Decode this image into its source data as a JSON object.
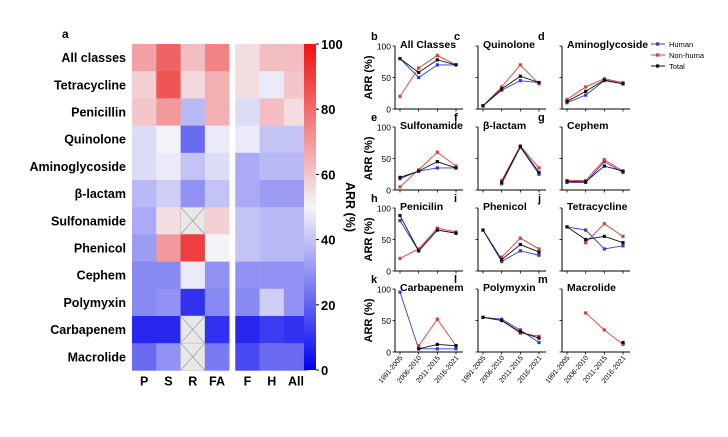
{
  "panel_letters": {
    "a": "a",
    "b": "b",
    "c": "c",
    "d": "d",
    "e": "e",
    "f": "f",
    "g": "g",
    "h": "h",
    "i": "i",
    "j": "j",
    "k": "k",
    "l": "l",
    "m": "m"
  },
  "legend": [
    {
      "label": "Human",
      "color": "#2a3bd6"
    },
    {
      "label": "Non-huma",
      "color": "#e63a2e"
    },
    {
      "label": "Total",
      "color": "#111111"
    }
  ],
  "chart_data": [
    {
      "type": "heatmap",
      "rows": [
        "All classes",
        "Tetracycline",
        "Penicillin",
        "Quinolone",
        "Aminoglycoside",
        "β-lactam",
        "Sulfonamide",
        "Phenicol",
        "Cephem",
        "Polymyxin",
        "Carbapenem",
        "Macrolide"
      ],
      "columns": [
        "P",
        "S",
        "R",
        "FA",
        "F",
        "H",
        "All"
      ],
      "values": [
        [
          68,
          82,
          62,
          75,
          55,
          62,
          62
        ],
        [
          58,
          85,
          56,
          65,
          55,
          48,
          60
        ],
        [
          60,
          70,
          38,
          65,
          45,
          62,
          55
        ],
        [
          45,
          50,
          22,
          48,
          48,
          40,
          40
        ],
        [
          45,
          48,
          40,
          45,
          35,
          38,
          38
        ],
        [
          38,
          42,
          30,
          40,
          35,
          32,
          32
        ],
        [
          35,
          55,
          null,
          58,
          40,
          38,
          38
        ],
        [
          32,
          70,
          90,
          50,
          40,
          38,
          38
        ],
        [
          28,
          28,
          48,
          30,
          30,
          30,
          30
        ],
        [
          28,
          30,
          10,
          28,
          28,
          42,
          30
        ],
        [
          8,
          8,
          null,
          10,
          8,
          12,
          10
        ],
        [
          22,
          30,
          null,
          25,
          15,
          22,
          22
        ]
      ],
      "colorbar": {
        "label": "ARR (%)",
        "ticks": [
          "0",
          "20",
          "40",
          "60",
          "80",
          "100"
        ],
        "min": 0,
        "max": 100
      }
    },
    {
      "type": "line",
      "ylabel": "ARR (%)",
      "x": [
        "1991-2005",
        "2006-2010",
        "2011-2015",
        "2016-2021"
      ],
      "ylim": [
        0,
        100
      ],
      "yticks": [
        "0",
        "50",
        "100"
      ],
      "panels": [
        {
          "title": "All Classes",
          "series": [
            {
              "name": "Human",
              "values": [
                80,
                50,
                70,
                70
              ]
            },
            {
              "name": "Non-huma",
              "values": [
                20,
                65,
                85,
                70
              ]
            },
            {
              "name": "Total",
              "values": [
                80,
                58,
                78,
                70
              ]
            }
          ]
        },
        {
          "title": "Quinolone",
          "series": [
            {
              "name": "Human",
              "values": [
                5,
                30,
                45,
                42
              ]
            },
            {
              "name": "Non-huma",
              "values": [
                5,
                35,
                70,
                40
              ]
            },
            {
              "name": "Total",
              "values": [
                5,
                32,
                52,
                42
              ]
            }
          ]
        },
        {
          "title": "Aminoglycoside",
          "series": [
            {
              "name": "Human",
              "values": [
                10,
                22,
                45,
                40
              ]
            },
            {
              "name": "Non-huma",
              "values": [
                15,
                35,
                48,
                42
              ]
            },
            {
              "name": "Total",
              "values": [
                12,
                28,
                46,
                40
              ]
            }
          ]
        },
        {
          "title": "Sulfonamide",
          "series": [
            {
              "name": "Human",
              "values": [
                18,
                30,
                35,
                35
              ]
            },
            {
              "name": "Non-huma",
              "values": [
                5,
                32,
                60,
                38
              ]
            },
            {
              "name": "Total",
              "values": [
                20,
                30,
                45,
                35
              ]
            }
          ]
        },
        {
          "title": "β-lactam",
          "series": [
            {
              "name": "Human",
              "values": [
                null,
                10,
                68,
                25
              ]
            },
            {
              "name": "Non-huma",
              "values": [
                null,
                15,
                70,
                35
              ]
            },
            {
              "name": "Total",
              "values": [
                null,
                12,
                69,
                28
              ]
            }
          ]
        },
        {
          "title": "Cephem",
          "series": [
            {
              "name": "Human",
              "values": [
                12,
                12,
                45,
                28
              ]
            },
            {
              "name": "Non-huma",
              "values": [
                15,
                15,
                48,
                30
              ]
            },
            {
              "name": "Total",
              "values": [
                14,
                13,
                38,
                30
              ]
            }
          ]
        },
        {
          "title": "Penicilin",
          "series": [
            {
              "name": "Human",
              "values": [
                80,
                32,
                65,
                60
              ]
            },
            {
              "name": "Non-huma",
              "values": [
                20,
                35,
                68,
                62
              ]
            },
            {
              "name": "Total",
              "values": [
                88,
                32,
                65,
                60
              ]
            }
          ]
        },
        {
          "title": "Phenicol",
          "series": [
            {
              "name": "Human",
              "values": [
                65,
                15,
                32,
                25
              ]
            },
            {
              "name": "Non-huma",
              "values": [
                null,
                22,
                52,
                35
              ]
            },
            {
              "name": "Total",
              "values": [
                65,
                18,
                42,
                30
              ]
            }
          ]
        },
        {
          "title": "Tetracycline",
          "series": [
            {
              "name": "Human",
              "values": [
                70,
                65,
                35,
                40
              ]
            },
            {
              "name": "Non-huma",
              "values": [
                null,
                45,
                75,
                55
              ]
            },
            {
              "name": "Total",
              "values": [
                70,
                50,
                55,
                45
              ]
            }
          ]
        },
        {
          "title": "Carbapenem",
          "series": [
            {
              "name": "Human",
              "values": [
                95,
                5,
                5,
                5
              ]
            },
            {
              "name": "Non-huma",
              "values": [
                null,
                10,
                52,
                10
              ]
            },
            {
              "name": "Total",
              "values": [
                null,
                5,
                12,
                10
              ]
            }
          ]
        },
        {
          "title": "Polymyxin",
          "series": [
            {
              "name": "Human",
              "values": [
                55,
                52,
                35,
                15
              ]
            },
            {
              "name": "Non-huma",
              "values": [
                null,
                50,
                30,
                25
              ]
            },
            {
              "name": "Total",
              "values": [
                55,
                50,
                32,
                22
              ]
            }
          ]
        },
        {
          "title": "Macrolide",
          "series": [
            {
              "name": "Human",
              "values": [
                null,
                null,
                null,
                15
              ]
            },
            {
              "name": "Non-huma",
              "values": [
                null,
                62,
                35,
                12
              ]
            },
            {
              "name": "Total",
              "values": [
                null,
                null,
                null,
                15
              ]
            }
          ]
        }
      ]
    }
  ]
}
